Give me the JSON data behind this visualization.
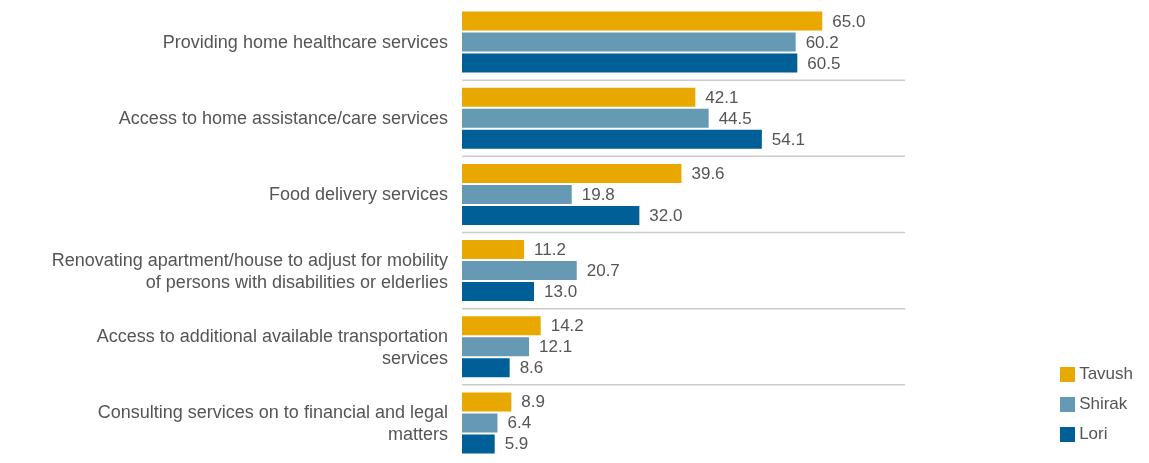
{
  "chart_data": {
    "type": "bar",
    "orientation": "horizontal",
    "categories": [
      "Providing home healthcare services",
      "Access to home assistance/care services",
      "Food delivery services",
      "Renovating apartment/house to adjust for mobility of persons with disabilities or elderlies",
      "Access to additional available transportation services",
      "Consulting services on to financial and legal matters"
    ],
    "series": [
      {
        "name": "Tavush",
        "color": "#e9a800",
        "values": [
          65.0,
          42.1,
          39.6,
          11.2,
          14.2,
          8.9
        ],
        "value_labels": [
          "65.0",
          "42.1",
          "39.6",
          "11.2",
          "14.2",
          "8.9"
        ]
      },
      {
        "name": "Shirak",
        "color": "#6699b4",
        "values": [
          60.2,
          44.5,
          19.8,
          20.7,
          12.1,
          6.4
        ],
        "value_labels": [
          "60.2",
          "44.5",
          "19.8",
          "20.7",
          "12.1",
          "6.4"
        ]
      },
      {
        "name": "Lori",
        "color": "#005f96",
        "values": [
          60.5,
          54.1,
          32.0,
          13.0,
          8.6,
          5.9
        ],
        "value_labels": [
          "60.5",
          "54.1",
          "32.0",
          "13.0",
          "8.6",
          "5.9"
        ]
      }
    ],
    "grid": "y",
    "legend": "bottom right",
    "tick_labels": "y"
  }
}
